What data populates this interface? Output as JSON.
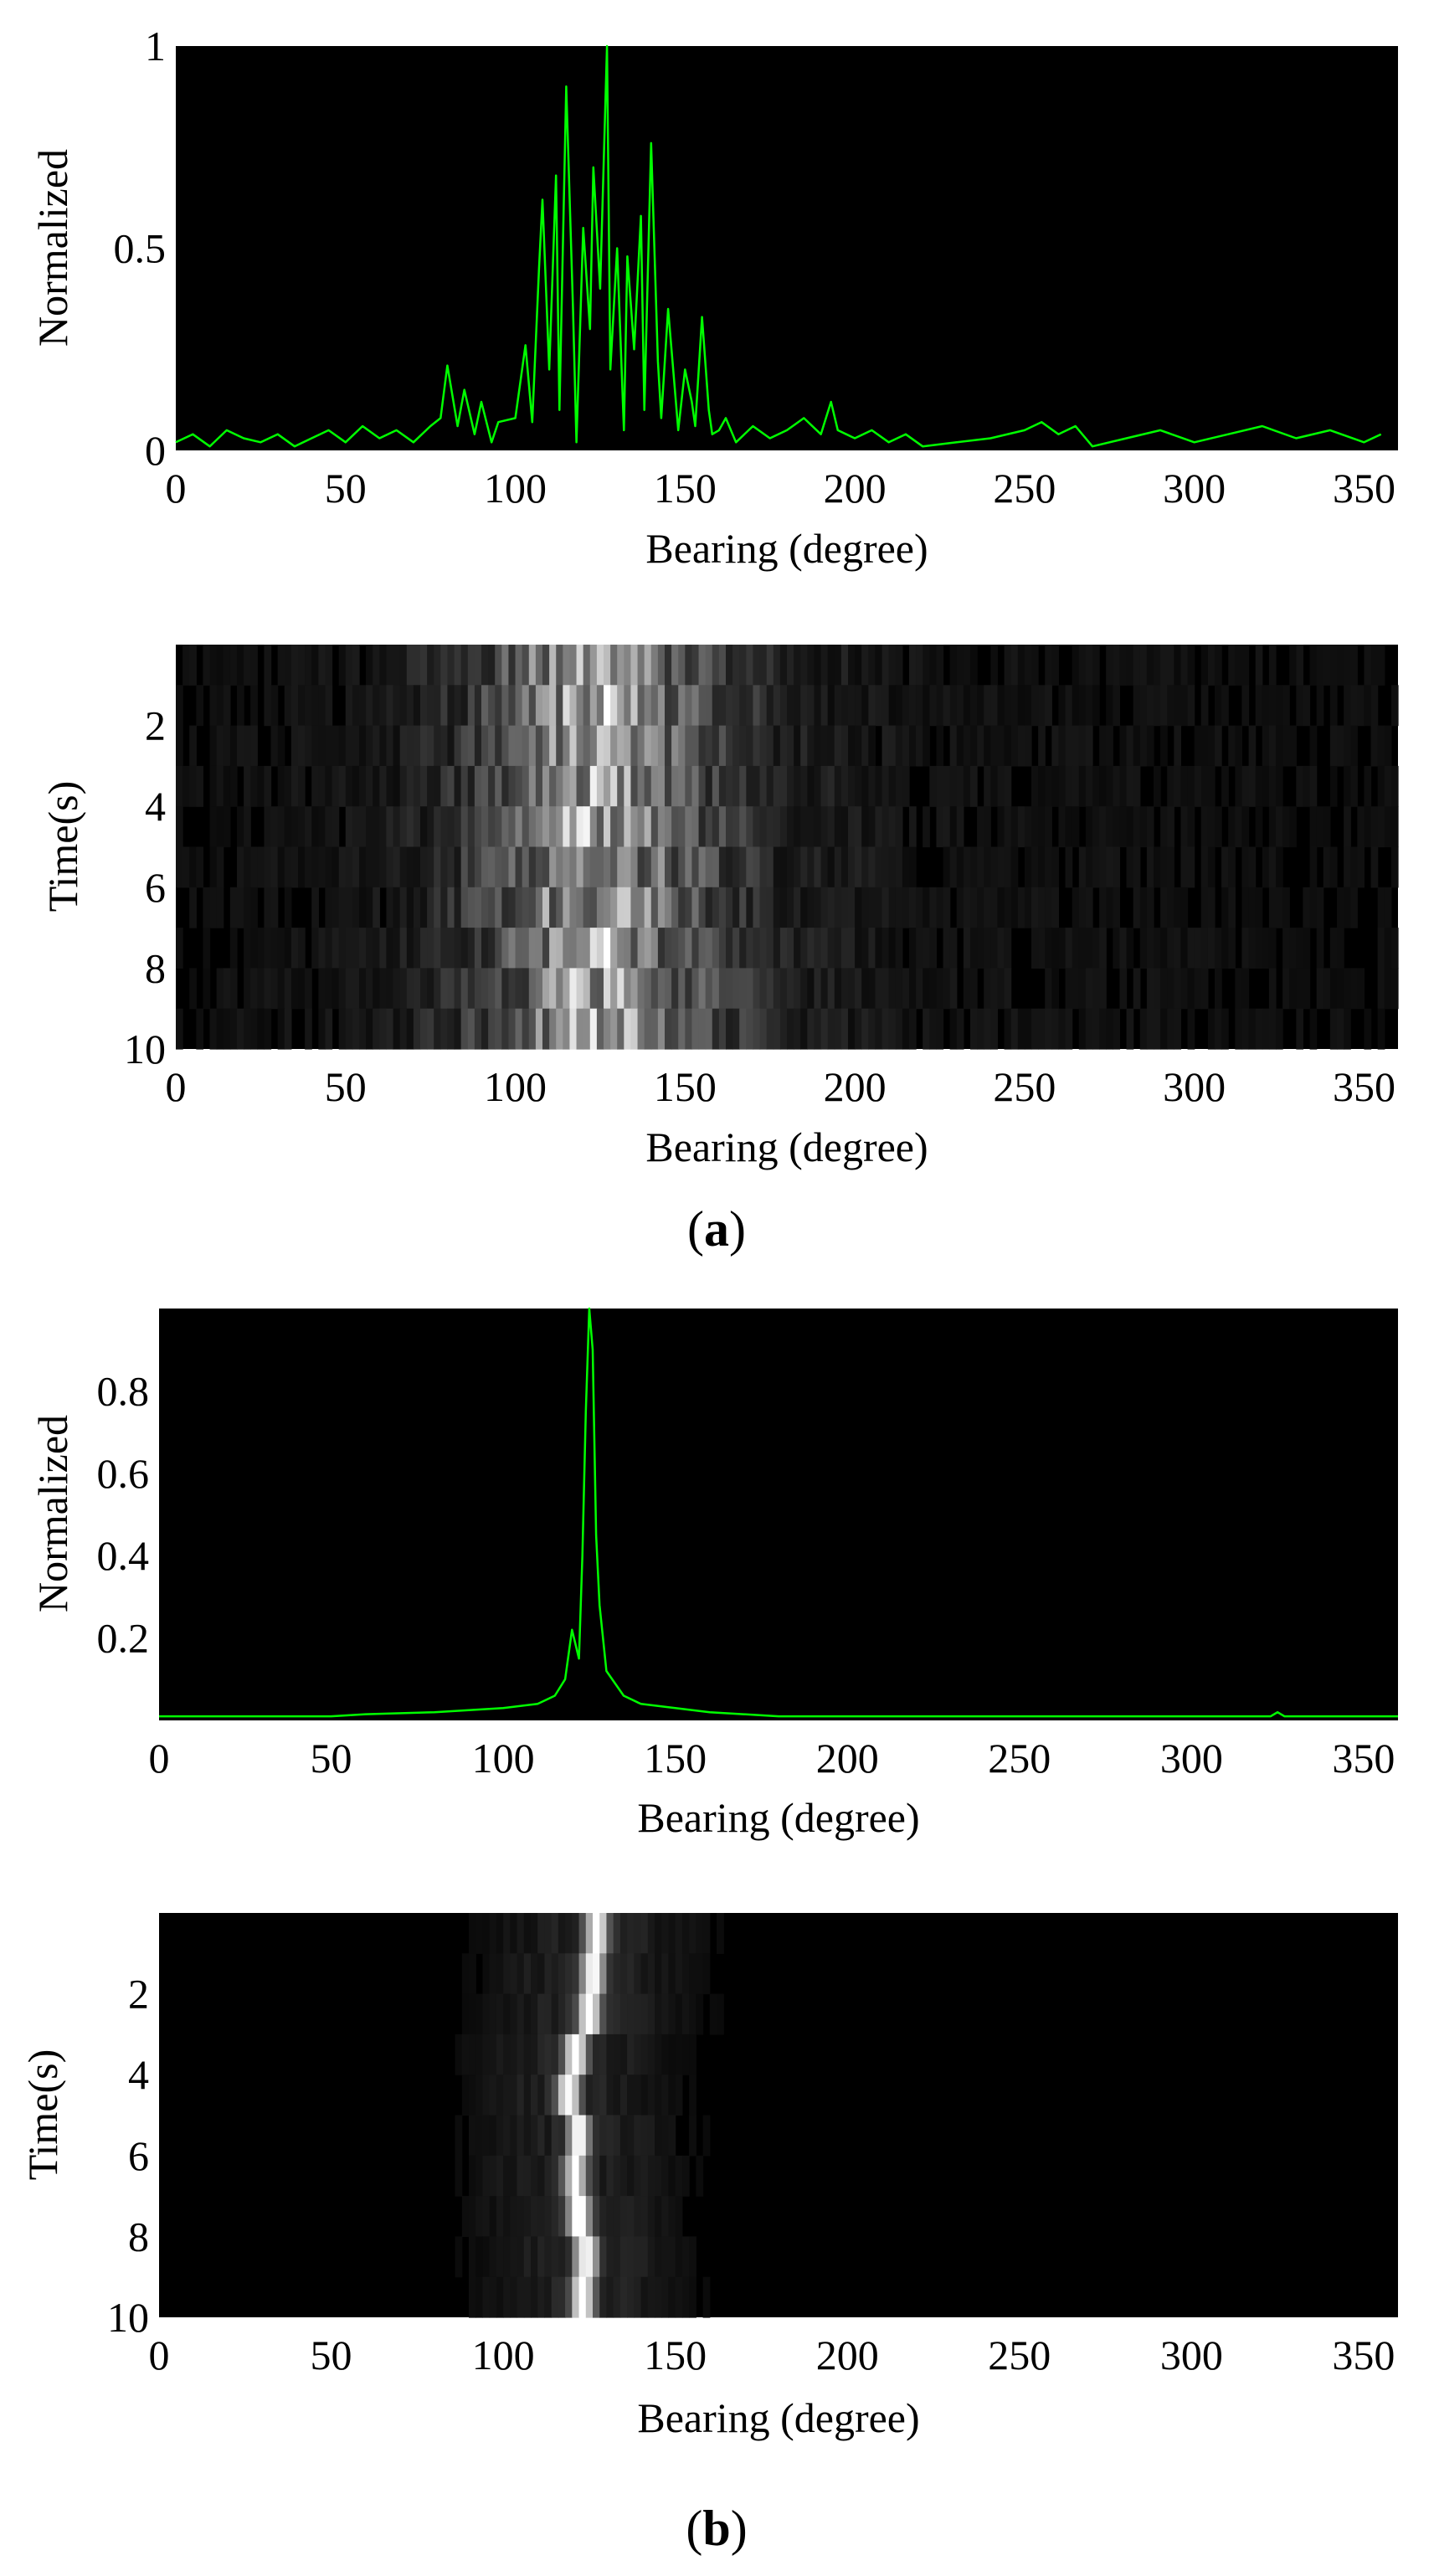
{
  "panels": {
    "a": {
      "label_open": "(",
      "label_letter": "a",
      "label_close": ")"
    },
    "b": {
      "label_open": "(",
      "label_letter": "b",
      "label_close": ")"
    }
  },
  "colors": {
    "line": "#00ff00",
    "plot_background": "#000000",
    "page_background": "#ffffff"
  },
  "chart_data": [
    {
      "id": "a-spectrum",
      "type": "line",
      "xlabel": "Bearing (degree)",
      "ylabel": "Normalized",
      "xlim": [
        0,
        360
      ],
      "ylim": [
        0,
        1
      ],
      "xticks": [
        0,
        50,
        100,
        150,
        200,
        250,
        300,
        350
      ],
      "yticks": [
        0,
        0.5,
        1
      ],
      "ytick_labels": [
        "0",
        "0.5",
        "1"
      ],
      "grid": false,
      "series": [
        {
          "x": [
            0,
            5,
            10,
            15,
            20,
            25,
            30,
            35,
            40,
            45,
            50,
            55,
            60,
            65,
            70,
            75,
            78,
            80,
            83,
            85,
            88,
            90,
            93,
            95,
            100,
            103,
            105,
            107,
            108,
            110,
            112,
            113,
            115,
            117,
            118,
            120,
            122,
            123,
            125,
            127,
            128,
            130,
            132,
            133,
            135,
            137,
            138,
            140,
            142,
            143,
            145,
            147,
            148,
            150,
            152,
            153,
            155,
            157,
            158,
            160,
            162,
            165,
            170,
            175,
            180,
            185,
            190,
            193,
            195,
            200,
            205,
            210,
            215,
            220,
            230,
            240,
            250,
            255,
            260,
            265,
            270,
            280,
            290,
            300,
            310,
            320,
            330,
            340,
            350,
            355
          ],
          "y": [
            0.02,
            0.04,
            0.01,
            0.05,
            0.03,
            0.02,
            0.04,
            0.01,
            0.03,
            0.05,
            0.02,
            0.06,
            0.03,
            0.05,
            0.02,
            0.06,
            0.08,
            0.21,
            0.06,
            0.15,
            0.04,
            0.12,
            0.02,
            0.07,
            0.08,
            0.26,
            0.07,
            0.45,
            0.62,
            0.2,
            0.68,
            0.1,
            0.9,
            0.35,
            0.02,
            0.55,
            0.3,
            0.7,
            0.4,
            1.0,
            0.2,
            0.5,
            0.05,
            0.48,
            0.25,
            0.58,
            0.1,
            0.76,
            0.22,
            0.08,
            0.35,
            0.15,
            0.05,
            0.2,
            0.12,
            0.06,
            0.33,
            0.1,
            0.04,
            0.05,
            0.08,
            0.02,
            0.06,
            0.03,
            0.05,
            0.08,
            0.04,
            0.12,
            0.05,
            0.03,
            0.05,
            0.02,
            0.04,
            0.01,
            0.02,
            0.03,
            0.05,
            0.07,
            0.04,
            0.06,
            0.01,
            0.03,
            0.05,
            0.02,
            0.04,
            0.06,
            0.03,
            0.05,
            0.02,
            0.04
          ]
        }
      ]
    },
    {
      "id": "a-waterfall",
      "type": "heatmap",
      "xlabel": "Bearing (degree)",
      "ylabel": "Time(s)",
      "xlim": [
        0,
        360
      ],
      "ylim": [
        10,
        0
      ],
      "xticks": [
        0,
        50,
        100,
        150,
        200,
        250,
        300,
        350
      ],
      "yticks": [
        2,
        4,
        6,
        8,
        10
      ],
      "time_rows": 10,
      "colormap": "gray",
      "intensity_profile": [
        {
          "bearing": 0,
          "level": 0.06
        },
        {
          "bearing": 60,
          "level": 0.1
        },
        {
          "bearing": 80,
          "level": 0.2
        },
        {
          "bearing": 100,
          "level": 0.4
        },
        {
          "bearing": 110,
          "level": 0.65
        },
        {
          "bearing": 125,
          "level": 0.85
        },
        {
          "bearing": 140,
          "level": 0.55
        },
        {
          "bearing": 160,
          "level": 0.3
        },
        {
          "bearing": 180,
          "level": 0.15
        },
        {
          "bearing": 220,
          "level": 0.08
        },
        {
          "bearing": 360,
          "level": 0.06
        }
      ]
    },
    {
      "id": "b-spectrum",
      "type": "line",
      "xlabel": "Bearing (degree)",
      "ylabel": "Normalized",
      "xlim": [
        0,
        360
      ],
      "ylim": [
        0,
        1
      ],
      "xticks": [
        0,
        50,
        100,
        150,
        200,
        250,
        300,
        350
      ],
      "yticks": [
        0.2,
        0.4,
        0.6,
        0.8
      ],
      "ytick_labels": [
        "0.2",
        "0.4",
        "0.6",
        "0.8"
      ],
      "grid": false,
      "series": [
        {
          "x": [
            0,
            50,
            60,
            80,
            100,
            110,
            115,
            118,
            120,
            122,
            123,
            124,
            125,
            126,
            127,
            128,
            130,
            135,
            140,
            150,
            160,
            180,
            200,
            250,
            300,
            323,
            325,
            327,
            360
          ],
          "y": [
            0.01,
            0.01,
            0.015,
            0.02,
            0.03,
            0.04,
            0.06,
            0.1,
            0.22,
            0.15,
            0.4,
            0.75,
            1.0,
            0.9,
            0.45,
            0.28,
            0.12,
            0.06,
            0.04,
            0.03,
            0.02,
            0.01,
            0.01,
            0.01,
            0.01,
            0.01,
            0.02,
            0.01,
            0.01
          ]
        }
      ]
    },
    {
      "id": "b-waterfall",
      "type": "heatmap",
      "xlabel": "Bearing (degree)",
      "ylabel": "Time(s)",
      "xlim": [
        0,
        360
      ],
      "ylim": [
        10,
        0
      ],
      "xticks": [
        0,
        50,
        100,
        150,
        200,
        250,
        300,
        350
      ],
      "yticks": [
        2,
        4,
        6,
        8,
        10
      ],
      "time_rows": 10,
      "colormap": "gray",
      "peak_bearings": [
        127,
        126,
        125,
        121,
        119,
        122,
        121,
        122,
        124,
        123
      ]
    }
  ]
}
